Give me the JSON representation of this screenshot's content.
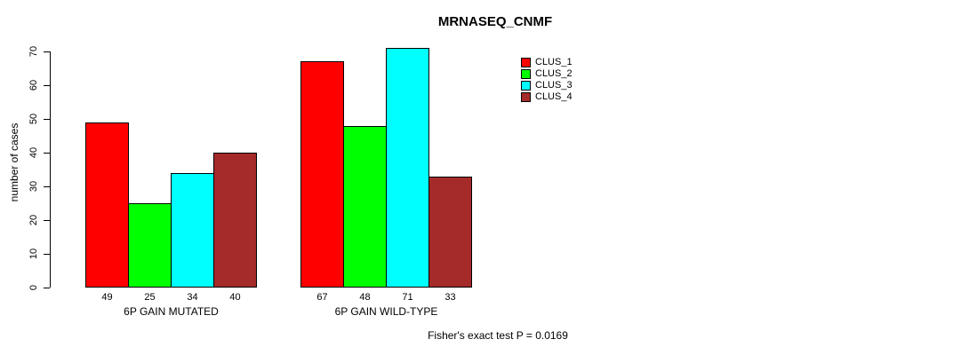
{
  "chart_data": {
    "type": "bar",
    "title": "MRNASEQ_CNMF",
    "xlabel": "",
    "ylabel": "number of cases",
    "ylim": [
      0,
      70
    ],
    "y_ticks": [
      0,
      10,
      20,
      30,
      40,
      50,
      60,
      70
    ],
    "categories": [
      "6P GAIN MUTATED",
      "6P GAIN WILD-TYPE"
    ],
    "series": [
      {
        "name": "CLUS_1",
        "color": "#FF0000",
        "values": [
          49,
          67
        ]
      },
      {
        "name": "CLUS_2",
        "color": "#00FF00",
        "values": [
          25,
          48
        ]
      },
      {
        "name": "CLUS_3",
        "color": "#00FFFF",
        "values": [
          34,
          71
        ]
      },
      {
        "name": "CLUS_4",
        "color": "#A52A2A",
        "values": [
          40,
          33
        ]
      }
    ],
    "bar_value_labels": [
      [
        49,
        25,
        34,
        40
      ],
      [
        67,
        48,
        71,
        33
      ]
    ],
    "grid": false,
    "legend_position": "top-right",
    "annotation": "Fisher's exact test P = 0.0169"
  }
}
